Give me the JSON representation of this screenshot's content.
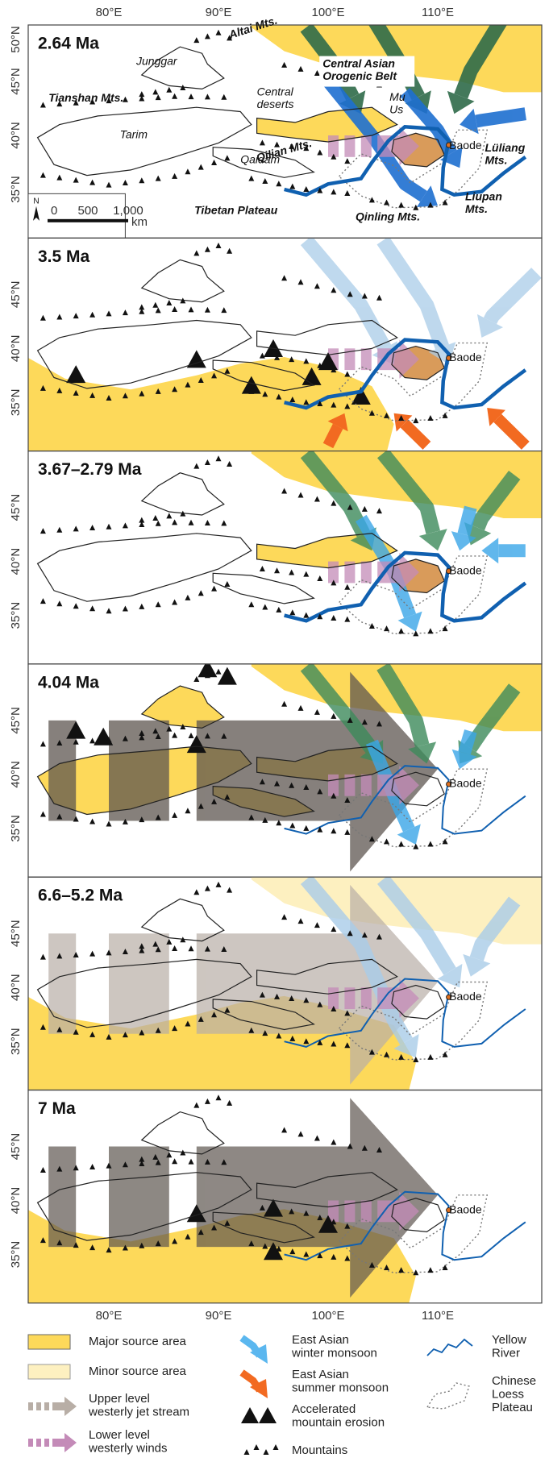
{
  "axes": {
    "longitude_labels": [
      "80°E",
      "90°E",
      "100°E",
      "110°E"
    ]
  },
  "panels": [
    {
      "age": "2.64 Ma",
      "latitude_labels": [
        "50°N",
        "45°N",
        "40°N",
        "35°N"
      ],
      "place_labels": [
        "Junggar",
        "Altai Mts.",
        "Tianshan Mts.",
        "Tarim",
        [
          "Central Asian",
          "Orogenic Belt"
        ],
        [
          "Central",
          "deserts"
        ],
        [
          "Mu",
          "Us"
        ],
        "Qilian Mts.",
        "Qaidam",
        "Baode",
        [
          "Lüliang",
          "Mts."
        ],
        "Tibetan Plateau",
        "Qinling Mts.",
        [
          "Liupan",
          "Mts."
        ]
      ]
    },
    {
      "age": "3.5 Ma",
      "latitude_labels": [
        "45°N",
        "40°N",
        "35°N"
      ],
      "place_labels": [
        "Baode"
      ]
    },
    {
      "age": "3.67–2.79 Ma",
      "latitude_labels": [
        "45°N",
        "40°N",
        "35°N"
      ],
      "place_labels": [
        "Baode"
      ]
    },
    {
      "age": "4.04 Ma",
      "latitude_labels": [
        "45°N",
        "40°N",
        "35°N"
      ],
      "place_labels": [
        "Baode"
      ]
    },
    {
      "age": "6.6–5.2 Ma",
      "latitude_labels": [
        "45°N",
        "40°N",
        "35°N"
      ],
      "place_labels": [
        "Baode"
      ]
    },
    {
      "age": "7 Ma",
      "latitude_labels": [
        "45°N",
        "40°N",
        "35°N"
      ],
      "place_labels": [
        "Baode"
      ]
    }
  ],
  "scale_bar": {
    "north": "N",
    "labels": [
      "0",
      "500",
      "1,000"
    ],
    "unit": "km"
  },
  "legend": [
    [
      "Major source area"
    ],
    [
      "Minor source area"
    ],
    [
      "Upper level",
      "westerly jet stream"
    ],
    [
      "Lower level",
      "westerly winds"
    ],
    [
      "East Asian",
      "winter monsoon"
    ],
    [
      "East Asian",
      "summer monsoon"
    ],
    [
      "Accelerated",
      "mountain erosion"
    ],
    [
      "Mountains"
    ],
    [
      "Yellow",
      "River"
    ],
    [
      "Chinese",
      "Loess",
      "Plateau"
    ]
  ]
}
